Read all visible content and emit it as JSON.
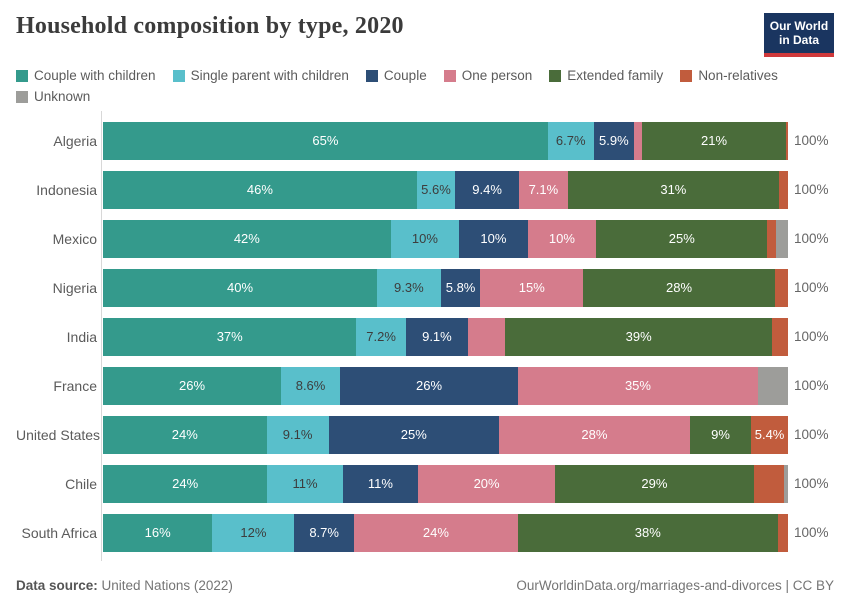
{
  "header": {
    "title": "Household composition by type, 2020",
    "logo_line1": "Our World",
    "logo_line2": "in Data"
  },
  "legend": [
    {
      "label": "Couple with children",
      "color": "#349a8c"
    },
    {
      "label": "Single parent with children",
      "color": "#59bfcb"
    },
    {
      "label": "Couple",
      "color": "#2d4e76"
    },
    {
      "label": "One person",
      "color": "#d57c8c"
    },
    {
      "label": "Extended family",
      "color": "#4a6c3a"
    },
    {
      "label": "Non-relatives",
      "color": "#c15c3d"
    },
    {
      "label": "Unknown",
      "color": "#9d9d9a"
    }
  ],
  "chart_data": {
    "type": "bar",
    "orientation": "horizontal",
    "stacked": true,
    "unit": "%",
    "xlim": [
      0,
      100
    ],
    "series_names": [
      "Couple with children",
      "Single parent with children",
      "Couple",
      "One person",
      "Extended family",
      "Non-relatives",
      "Unknown"
    ],
    "series_colors": [
      "#349a8c",
      "#59bfcb",
      "#2d4e76",
      "#d57c8c",
      "#4a6c3a",
      "#c15c3d",
      "#9d9d9a"
    ],
    "total_label": "100%",
    "rows": [
      {
        "country": "Algeria",
        "segments": [
          {
            "series": 0,
            "value": 65,
            "label": "65%"
          },
          {
            "series": 1,
            "value": 6.7,
            "label": "6.7%"
          },
          {
            "series": 2,
            "value": 5.9,
            "label": "5.9%"
          },
          {
            "series": 3,
            "value": 1.2,
            "label": ""
          },
          {
            "series": 4,
            "value": 21,
            "label": "21%"
          },
          {
            "series": 5,
            "value": 0.3,
            "label": ""
          }
        ]
      },
      {
        "country": "Indonesia",
        "segments": [
          {
            "series": 0,
            "value": 46,
            "label": "46%"
          },
          {
            "series": 1,
            "value": 5.6,
            "label": "5.6%"
          },
          {
            "series": 2,
            "value": 9.4,
            "label": "9.4%"
          },
          {
            "series": 3,
            "value": 7.1,
            "label": "7.1%"
          },
          {
            "series": 4,
            "value": 31,
            "label": "31%"
          },
          {
            "series": 5,
            "value": 1.3,
            "label": ""
          }
        ]
      },
      {
        "country": "Mexico",
        "segments": [
          {
            "series": 0,
            "value": 42,
            "label": "42%"
          },
          {
            "series": 1,
            "value": 10,
            "label": "10%"
          },
          {
            "series": 2,
            "value": 10,
            "label": "10%"
          },
          {
            "series": 3,
            "value": 10,
            "label": "10%"
          },
          {
            "series": 4,
            "value": 25,
            "label": "25%"
          },
          {
            "series": 5,
            "value": 1.2,
            "label": ""
          },
          {
            "series": 6,
            "value": 1.8,
            "label": ""
          }
        ]
      },
      {
        "country": "Nigeria",
        "segments": [
          {
            "series": 0,
            "value": 40,
            "label": "40%"
          },
          {
            "series": 1,
            "value": 9.3,
            "label": "9.3%"
          },
          {
            "series": 2,
            "value": 5.8,
            "label": "5.8%"
          },
          {
            "series": 3,
            "value": 15,
            "label": "15%"
          },
          {
            "series": 4,
            "value": 28,
            "label": "28%"
          },
          {
            "series": 5,
            "value": 1.9,
            "label": ""
          }
        ]
      },
      {
        "country": "India",
        "segments": [
          {
            "series": 0,
            "value": 37,
            "label": "37%"
          },
          {
            "series": 1,
            "value": 7.2,
            "label": "7.2%"
          },
          {
            "series": 2,
            "value": 9.1,
            "label": "9.1%"
          },
          {
            "series": 3,
            "value": 5.4,
            "label": ""
          },
          {
            "series": 4,
            "value": 39,
            "label": "39%"
          },
          {
            "series": 5,
            "value": 2.3,
            "label": ""
          }
        ]
      },
      {
        "country": "France",
        "segments": [
          {
            "series": 0,
            "value": 26,
            "label": "26%"
          },
          {
            "series": 1,
            "value": 8.6,
            "label": "8.6%"
          },
          {
            "series": 2,
            "value": 26,
            "label": "26%"
          },
          {
            "series": 3,
            "value": 35,
            "label": "35%"
          },
          {
            "series": 6,
            "value": 4.4,
            "label": ""
          }
        ]
      },
      {
        "country": "United States",
        "segments": [
          {
            "series": 0,
            "value": 24,
            "label": "24%"
          },
          {
            "series": 1,
            "value": 9.1,
            "label": "9.1%"
          },
          {
            "series": 2,
            "value": 25,
            "label": "25%"
          },
          {
            "series": 3,
            "value": 28,
            "label": "28%"
          },
          {
            "series": 4,
            "value": 9,
            "label": "9%"
          },
          {
            "series": 5,
            "value": 5.4,
            "label": "5.4%"
          }
        ]
      },
      {
        "country": "Chile",
        "segments": [
          {
            "series": 0,
            "value": 24,
            "label": "24%"
          },
          {
            "series": 1,
            "value": 11,
            "label": "11%"
          },
          {
            "series": 2,
            "value": 11,
            "label": "11%"
          },
          {
            "series": 3,
            "value": 20,
            "label": "20%"
          },
          {
            "series": 4,
            "value": 29,
            "label": "29%"
          },
          {
            "series": 5,
            "value": 4.4,
            "label": ""
          },
          {
            "series": 6,
            "value": 0.6,
            "label": ""
          }
        ]
      },
      {
        "country": "South Africa",
        "segments": [
          {
            "series": 0,
            "value": 16,
            "label": "16%"
          },
          {
            "series": 1,
            "value": 12,
            "label": "12%"
          },
          {
            "series": 2,
            "value": 8.7,
            "label": "8.7%"
          },
          {
            "series": 3,
            "value": 24,
            "label": "24%"
          },
          {
            "series": 4,
            "value": 38,
            "label": "38%"
          },
          {
            "series": 5,
            "value": 1.5,
            "label": ""
          }
        ]
      }
    ]
  },
  "footer": {
    "source_prefix": "Data source:",
    "source_text": " United Nations (2022)",
    "right_text": "OurWorldinData.org/marriages-and-divorces | CC BY"
  }
}
